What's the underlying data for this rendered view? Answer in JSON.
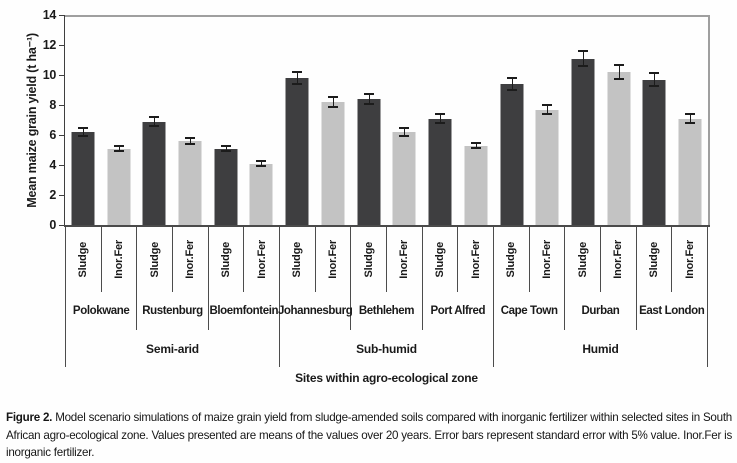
{
  "figure": {
    "caption_label": "Figure 2.",
    "caption_text": " Model scenario simulations of maize grain yield from sludge-amended soils compared with inorganic fertilizer within selected sites in South African agro-ecological zone. Values presented are means of the values over 20 years. Error bars represent standard error with 5% value. Inor.Fer is inorganic fertilizer."
  },
  "chart_data": {
    "type": "bar",
    "title": "",
    "ylabel": "Mean maize grain yield (t ha⁻¹)",
    "xlabel": "Sites within agro-ecological zone",
    "ylim": [
      0,
      14
    ],
    "yticks": [
      0,
      2,
      4,
      6,
      8,
      10,
      12,
      14
    ],
    "grid": false,
    "legend": "none (series identified by per-bar axis labels)",
    "error_bars": "standard error = 5% of value",
    "error_pct": 5,
    "treatments": [
      "Sludge",
      "Inor.Fer"
    ],
    "categories": [
      "Polokwane",
      "Rustenburg",
      "Bloemfontein",
      "Johannesburg",
      "Bethlehem",
      "Port Alfred",
      "Cape Town",
      "Durban",
      "East London"
    ],
    "zones": [
      {
        "label": "Semi-arid",
        "sites": [
          "Polokwane",
          "Rustenburg",
          "Bloemfontein"
        ]
      },
      {
        "label": "Sub-humid",
        "sites": [
          "Johannesburg",
          "Bethlehem",
          "Port Alfred"
        ]
      },
      {
        "label": "Humid",
        "sites": [
          "Cape Town",
          "Durban",
          "East London"
        ]
      }
    ],
    "series": [
      {
        "name": "Sludge",
        "color": "#3e3e40",
        "values": [
          6.2,
          6.9,
          5.1,
          9.8,
          8.4,
          7.1,
          9.4,
          11.1,
          9.7
        ]
      },
      {
        "name": "Inor.Fer",
        "color": "#c3c3c3",
        "values": [
          5.1,
          5.6,
          4.1,
          8.2,
          6.2,
          5.3,
          7.7,
          10.2,
          7.1
        ]
      }
    ],
    "colors": {
      "sludge_bar": "#3e3e40",
      "inorfer_bar": "#c3c3c3",
      "error_bar": "#1c1c1c",
      "plot_frame": "#9f9f9f",
      "axis_line": "#3f3f3f",
      "separator_line": "#4c4c4c"
    }
  }
}
